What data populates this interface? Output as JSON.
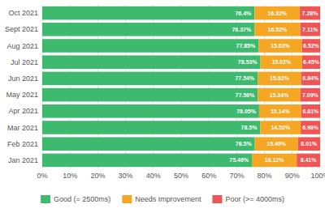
{
  "chart_data": {
    "type": "bar",
    "orientation": "horizontal",
    "stacked": true,
    "data_labels": true,
    "grid": true,
    "legend": "bottom",
    "categories": [
      "Jan 2021",
      "Feb 2021",
      "Mar 2021",
      "Apr 2021",
      "May 2021",
      "Jun 2021",
      "Jul 2021",
      "Aug 2021",
      "Sept 2021",
      "Oct 2021"
    ],
    "series": [
      {
        "name": "Good (= 2500ms)",
        "color": "#3dba6e",
        "values": [
          75.46,
          76.5,
          78.5,
          78.05,
          77.56,
          77.54,
          78.53,
          77.85,
          76.37,
          76.4
        ],
        "value_labels": [
          "75.46%",
          "76.5%",
          "78.5%",
          "78.05%",
          "77.56%",
          "77.54%",
          "78.53%",
          "77.85%",
          "76.37%",
          "76.4%"
        ]
      },
      {
        "name": "Needs Improvement",
        "color": "#f5a623",
        "values": [
          16.12,
          15.49,
          14.52,
          15.14,
          15.34,
          15.62,
          15.02,
          15.63,
          16.52,
          16.32
        ],
        "value_labels": [
          "16.12%",
          "15.49%",
          "14.52%",
          "15.14%",
          "15.34%",
          "15.62%",
          "15.02%",
          "15.63%",
          "16.52%",
          "16.32%"
        ]
      },
      {
        "name": "Poor (>= 4000ms)",
        "color": "#f05454",
        "values": [
          8.41,
          8.01,
          6.98,
          6.81,
          7.09,
          6.84,
          6.45,
          6.52,
          7.11,
          7.28
        ],
        "value_labels": [
          "8.41%",
          "8.01%",
          "6.98%",
          "6.81%",
          "7.09%",
          "6.84%",
          "6.45%",
          "6.52%",
          "7.11%",
          "7.28%"
        ]
      }
    ],
    "xlim": [
      0,
      100
    ],
    "xticks": [
      {
        "value": 0,
        "label": "0%"
      },
      {
        "value": 10,
        "label": "10%"
      },
      {
        "value": 20,
        "label": "20%"
      },
      {
        "value": 30,
        "label": "30%"
      },
      {
        "value": 40,
        "label": "40%"
      },
      {
        "value": 50,
        "label": "50%"
      },
      {
        "value": 60,
        "label": "60%"
      },
      {
        "value": 70,
        "label": "70%"
      },
      {
        "value": 80,
        "label": "80%"
      },
      {
        "value": 90,
        "label": "90%"
      },
      {
        "value": 100,
        "label": "100%"
      }
    ]
  }
}
